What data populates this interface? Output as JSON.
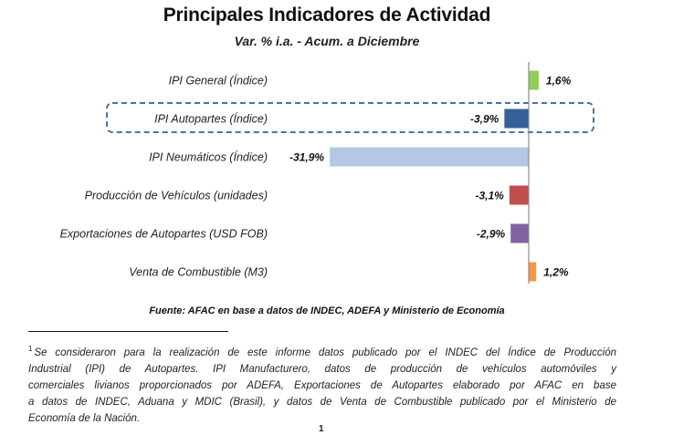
{
  "chart_data": {
    "type": "bar",
    "orientation": "horizontal",
    "title": "Principales Indicadores de Actividad",
    "subtitle": "Var. % i.a. - Acum. a Diciembre",
    "xlabel": "",
    "ylabel": "",
    "unit": "%",
    "grid": false,
    "legend": "none",
    "xlim": [
      -31.9,
      1.6
    ],
    "categories": [
      "IPI General (Índice)",
      "IPI Autopartes (Índice)",
      "IPI Neumáticos (Índice)",
      "Producción de Vehículos (unidades)",
      "Exportaciones de Autopartes (USD FOB)",
      "Venta de Combustible (M3)"
    ],
    "values": [
      1.6,
      -3.9,
      -31.9,
      -3.1,
      -2.9,
      1.2
    ],
    "data_labels": [
      "1,6%",
      "-3,9%",
      "-31,9%",
      "-3,1%",
      "-2,9%",
      "1,2%"
    ],
    "bar_colors": [
      "#92cd5a",
      "#36609a",
      "#b4c7e4",
      "#c0504d",
      "#8064a2",
      "#f79646"
    ],
    "highlighted_category": "IPI Autopartes (Índice)",
    "highlight_color": "#4a72a8",
    "axis_color": "#8c8c8c"
  },
  "source": "Fuente: AFAC en base a datos de INDEC, ADEFA y Ministerio de Economía",
  "footnote": {
    "marker": "1",
    "lines": [
      "Se consideraron para la realización de este informe datos publicado por el INDEC del Índice de Producción",
      "Industrial (IPI) de Autopartes. IPI Manufacturero, datos de producción de vehículos automóviles y",
      "comerciales livianos proporcionados por ADEFA, Exportaciones de Autopartes elaborado por AFAC en base",
      "a datos de INDEC, Aduana y MDIC (Brasil), y datos de Venta de Combustible publicado por el Ministerio de",
      "Economía de la Nación."
    ]
  },
  "page_number": "1"
}
